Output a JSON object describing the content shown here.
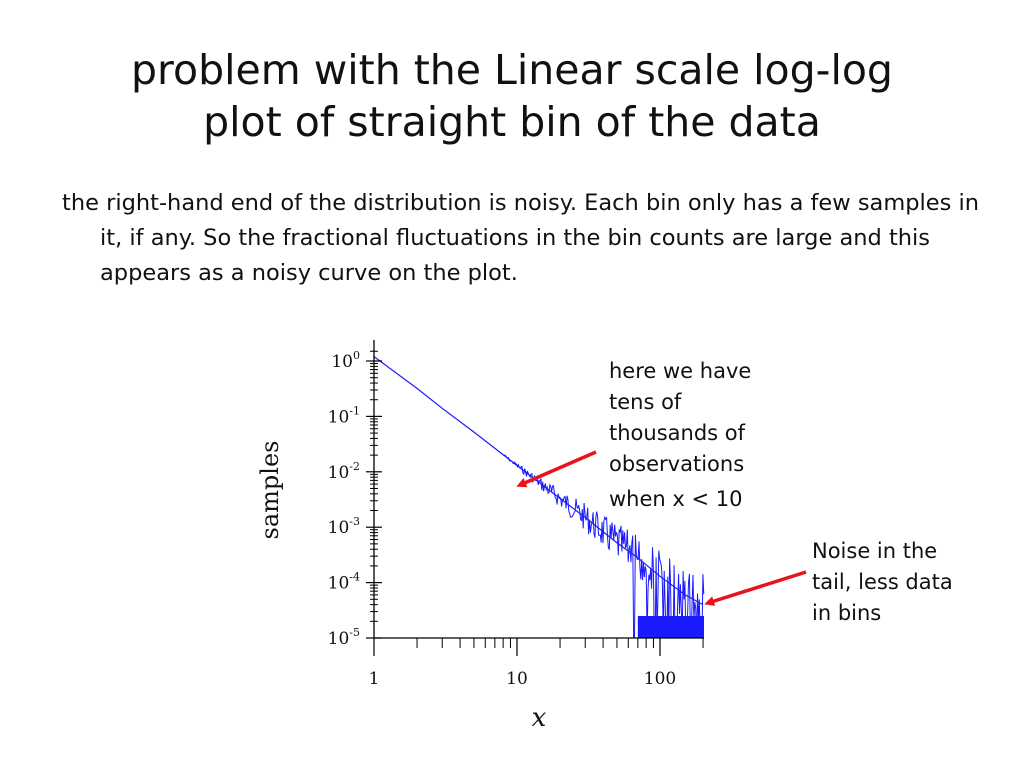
{
  "slide": {
    "title_line1": "problem with the Linear scale log-log",
    "title_line2": "plot of straight bin of the data",
    "body": "the right-hand end of the distribution is noisy. Each bin only has a few samples in it, if any. So the fractional fluctuations in the bin counts are large and this appears as a noisy curve on the plot."
  },
  "annotations": {
    "a1_lines": [
      "here we have",
      "tens of",
      "thousands of",
      "observations",
      "when x < 10"
    ],
    "a2_lines": [
      "Noise in the",
      "tail, less data",
      "in bins"
    ],
    "arrow_color": "#e8141b"
  },
  "chart_data": {
    "type": "line",
    "xlabel": "x",
    "ylabel": "samples",
    "x_scale": "log",
    "y_scale": "log",
    "xlim": [
      1,
      200
    ],
    "ylim": [
      1e-05,
      1.5
    ],
    "x_ticks": [
      1,
      10,
      100
    ],
    "x_tick_labels": [
      "1",
      "10",
      "100"
    ],
    "y_ticks": [
      1,
      0.1,
      0.01,
      0.001,
      0.0001,
      1e-05
    ],
    "y_tick_labels": [
      {
        "base": "10",
        "exp": "0"
      },
      {
        "base": "10",
        "exp": "-1"
      },
      {
        "base": "10",
        "exp": "-2"
      },
      {
        "base": "10",
        "exp": "-3"
      },
      {
        "base": "10",
        "exp": "-4"
      },
      {
        "base": "10",
        "exp": "-5"
      }
    ],
    "line_color": "#1a1aff",
    "series": [
      {
        "x": [
          1,
          2,
          3,
          5,
          10,
          20,
          30,
          50,
          70,
          100,
          150,
          200
        ],
        "y": [
          1.2,
          0.32,
          0.14,
          0.052,
          0.013,
          0.0033,
          0.0015,
          0.00052,
          0.00028,
          0.00013,
          6e-05,
          4e-05
        ]
      }
    ]
  }
}
